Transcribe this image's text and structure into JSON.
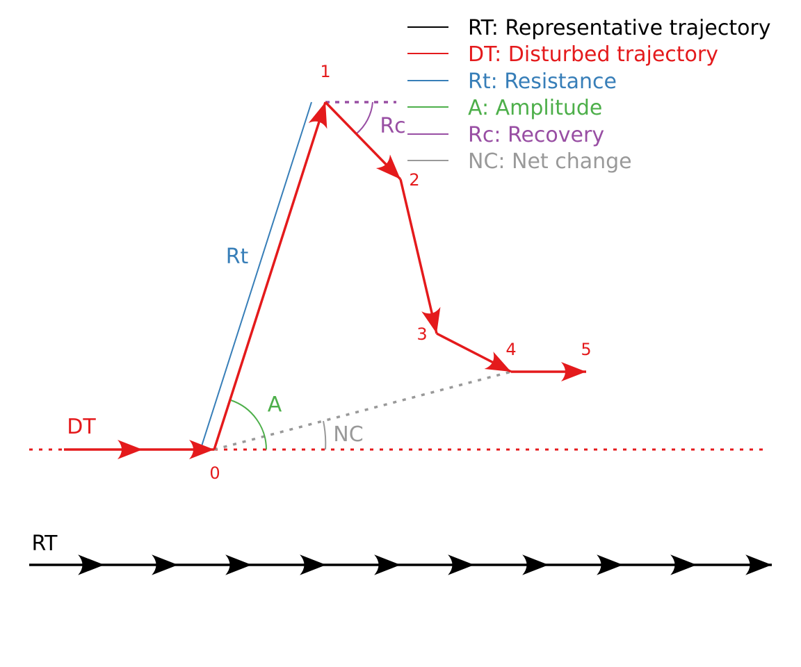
{
  "colors": {
    "rt": "#000000",
    "dt": "#e41a1c",
    "rt_resistance": "#377eb8",
    "amplitude": "#4daf4a",
    "recovery": "#984ea3",
    "net_change": "#999999"
  },
  "legend": [
    {
      "label": "RT: Representative trajectory",
      "color": "#000000"
    },
    {
      "label": "DT: Disturbed trajectory",
      "color": "#e41a1c"
    },
    {
      "label": "Rt: Resistance",
      "color": "#377eb8"
    },
    {
      "label": "A: Amplitude",
      "color": "#4daf4a"
    },
    {
      "label": "Rc: Recovery",
      "color": "#984ea3"
    },
    {
      "label": "NC: Net change",
      "color": "#999999"
    }
  ],
  "labels": {
    "dt": "DT",
    "rt": "RT",
    "resistance": "Rt",
    "amplitude": "A",
    "recovery": "Rc",
    "net_change": "NC"
  },
  "points": [
    "0",
    "1",
    "2",
    "3",
    "4",
    "5"
  ]
}
